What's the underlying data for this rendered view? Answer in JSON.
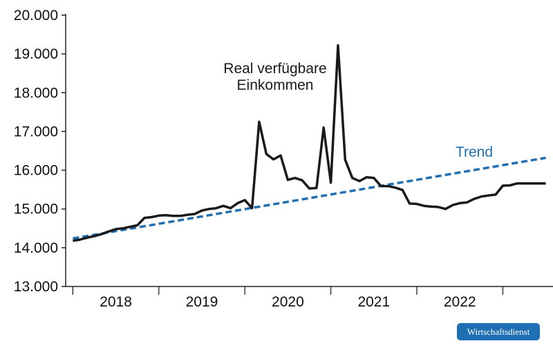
{
  "chart_data": {
    "type": "line",
    "title": "",
    "xlabel": "",
    "ylabel": "",
    "ylim": [
      13000,
      20000
    ],
    "yticks": [
      "13.000",
      "14.000",
      "15.000",
      "16.000",
      "17.000",
      "18.000",
      "19.000",
      "20.000"
    ],
    "ytick_values": [
      13000,
      14000,
      15000,
      16000,
      17000,
      18000,
      19000,
      20000
    ],
    "xlim": [
      "2017-12",
      "2023-08"
    ],
    "xticks": [
      "2018",
      "2019",
      "2020",
      "2021",
      "2022"
    ],
    "grid": false,
    "legend": "none",
    "series": [
      {
        "name": "Real verfügbare Einkommen",
        "color": "#1a1a1a",
        "style": "solid",
        "x": [
          "2018-01",
          "2018-02",
          "2018-03",
          "2018-04",
          "2018-05",
          "2018-06",
          "2018-07",
          "2018-08",
          "2018-09",
          "2018-10",
          "2018-11",
          "2018-12",
          "2019-01",
          "2019-02",
          "2019-03",
          "2019-04",
          "2019-05",
          "2019-06",
          "2019-07",
          "2019-08",
          "2019-09",
          "2019-10",
          "2019-11",
          "2019-12",
          "2020-01",
          "2020-02",
          "2020-03",
          "2020-04",
          "2020-05",
          "2020-06",
          "2020-07",
          "2020-08",
          "2020-09",
          "2020-10",
          "2020-11",
          "2020-12",
          "2021-01",
          "2021-02",
          "2021-03",
          "2021-04",
          "2021-05",
          "2021-06",
          "2021-07",
          "2021-08",
          "2021-09",
          "2021-10",
          "2021-11",
          "2021-12",
          "2022-01",
          "2022-02",
          "2022-03",
          "2022-04",
          "2022-05",
          "2022-06",
          "2022-07",
          "2022-08",
          "2022-09",
          "2022-10",
          "2022-11",
          "2022-12",
          "2023-01",
          "2023-02",
          "2023-03",
          "2023-04",
          "2023-05",
          "2023-06",
          "2023-07"
        ],
        "values": [
          14180,
          14210,
          14260,
          14300,
          14350,
          14420,
          14480,
          14500,
          14540,
          14580,
          14770,
          14790,
          14830,
          14840,
          14820,
          14820,
          14850,
          14870,
          14960,
          15000,
          15020,
          15080,
          15020,
          15150,
          15230,
          15020,
          17250,
          16420,
          16280,
          16380,
          15750,
          15800,
          15740,
          15530,
          15540,
          17100,
          15680,
          19220,
          16270,
          15800,
          15720,
          15820,
          15800,
          15590,
          15590,
          15550,
          15490,
          15140,
          15130,
          15080,
          15060,
          15050,
          15000,
          15100,
          15150,
          15170,
          15260,
          15320,
          15350,
          15370,
          15600,
          15610,
          15660,
          15660,
          15660,
          15660,
          15660
        ]
      },
      {
        "name": "Trend",
        "color": "#1f6fb5",
        "style": "dashed",
        "x": [
          "2018-01",
          "2023-07"
        ],
        "values": [
          14240,
          16320
        ]
      }
    ],
    "annotations": [
      {
        "text_lines": [
          "Real verfügbare",
          "Einkommen"
        ],
        "series": 0
      },
      {
        "text_lines": [
          "Trend"
        ],
        "series": 1
      }
    ]
  },
  "source_badge": "Wirtschaftsdienst"
}
